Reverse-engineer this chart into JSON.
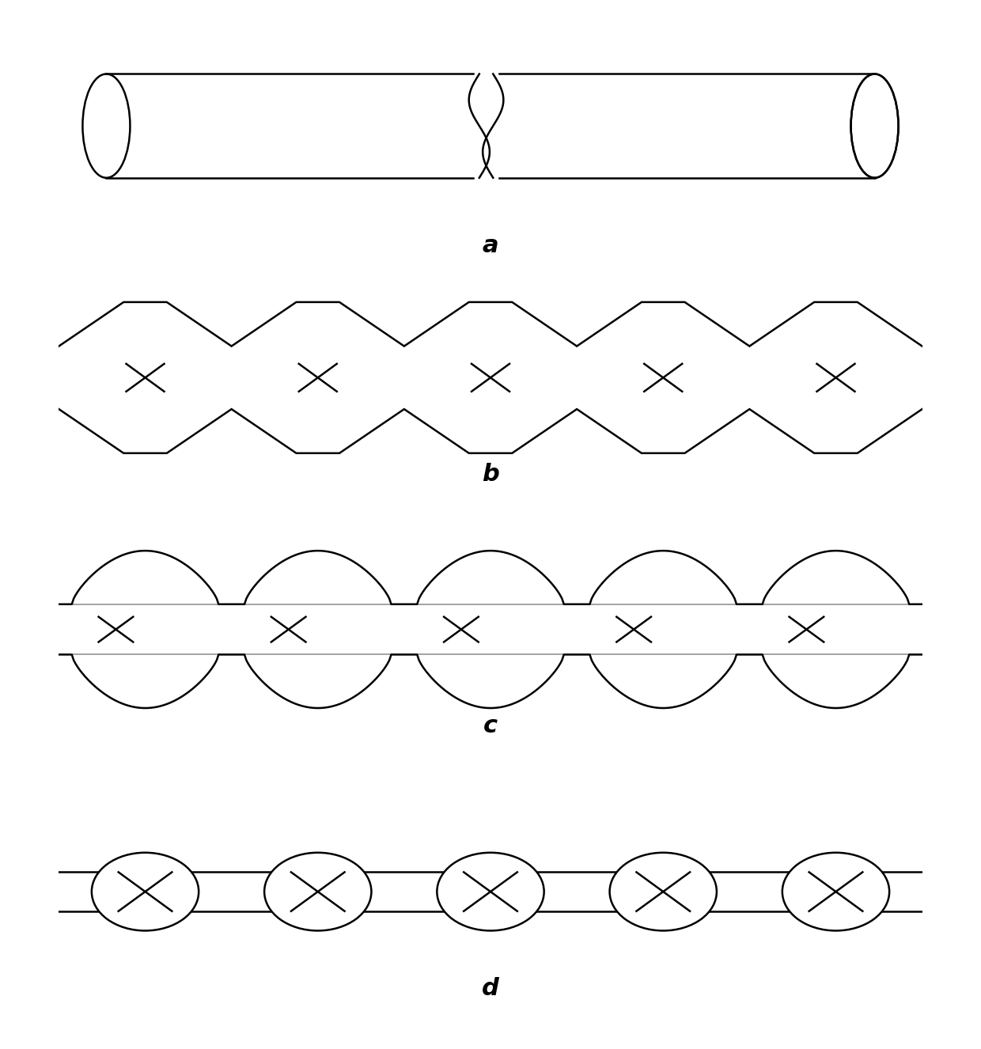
{
  "bg_color": "#ffffff",
  "line_color": "#000000",
  "line_width": 1.8,
  "labels": [
    "a",
    "b",
    "c",
    "d"
  ],
  "label_fontsize": 22,
  "label_fontweight": "bold"
}
